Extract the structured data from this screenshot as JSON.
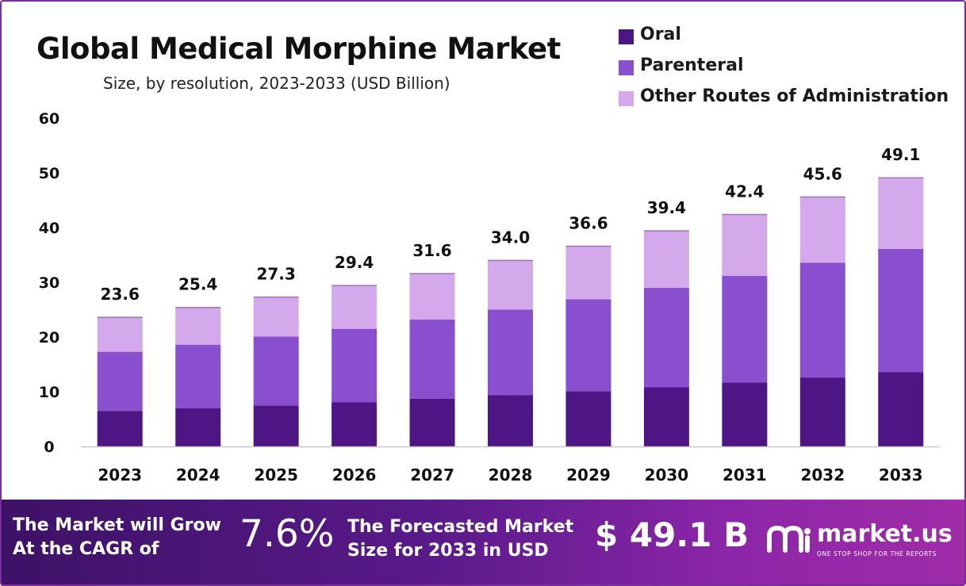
{
  "header": {
    "title": "Global Medical Morphine Market",
    "subtitle": "Size, by resolution, 2023-2033 (USD Billion)"
  },
  "colors": {
    "oral": "#4e1585",
    "parenteral": "#8a4fcf",
    "other": "#d4a9ec",
    "frame": "#7a2e9a"
  },
  "chart_data": {
    "type": "bar",
    "stacked": true,
    "title": "Global Medical Morphine Market",
    "subtitle": "Size, by resolution, 2023-2033 (USD Billion)",
    "xlabel": "",
    "ylabel": "",
    "ylim": [
      0,
      60
    ],
    "yticks": [
      0,
      10,
      20,
      30,
      40,
      50,
      60
    ],
    "categories": [
      "2023",
      "2024",
      "2025",
      "2026",
      "2027",
      "2028",
      "2029",
      "2030",
      "2031",
      "2032",
      "2033"
    ],
    "series": [
      {
        "name": "Oral",
        "values": [
          6.5,
          7.0,
          7.5,
          8.1,
          8.7,
          9.4,
          10.1,
          10.8,
          11.7,
          12.6,
          13.6
        ]
      },
      {
        "name": "Parenteral",
        "values": [
          10.8,
          11.6,
          12.6,
          13.4,
          14.5,
          15.6,
          16.8,
          18.2,
          19.5,
          21.0,
          22.5
        ]
      },
      {
        "name": "Other Routes of Administration",
        "values": [
          6.3,
          6.8,
          7.2,
          7.9,
          8.4,
          9.0,
          9.7,
          10.4,
          11.2,
          12.0,
          13.0
        ]
      }
    ],
    "totals": [
      "23.6",
      "25.4",
      "27.3",
      "29.4",
      "31.6",
      "34.0",
      "36.6",
      "39.4",
      "42.4",
      "45.6",
      "49.1"
    ],
    "legend": "top-right",
    "grid": false
  },
  "footer": {
    "cagr_label": "The Market will Grow At the CAGR of",
    "cagr_value": "7.6%",
    "forecast_label": "The Forecasted Market Size for 2033 in USD",
    "forecast_value": "$ 49.1 B",
    "brand_name": "market.us",
    "brand_tagline": "ONE STOP SHOP FOR THE REPORTS"
  }
}
